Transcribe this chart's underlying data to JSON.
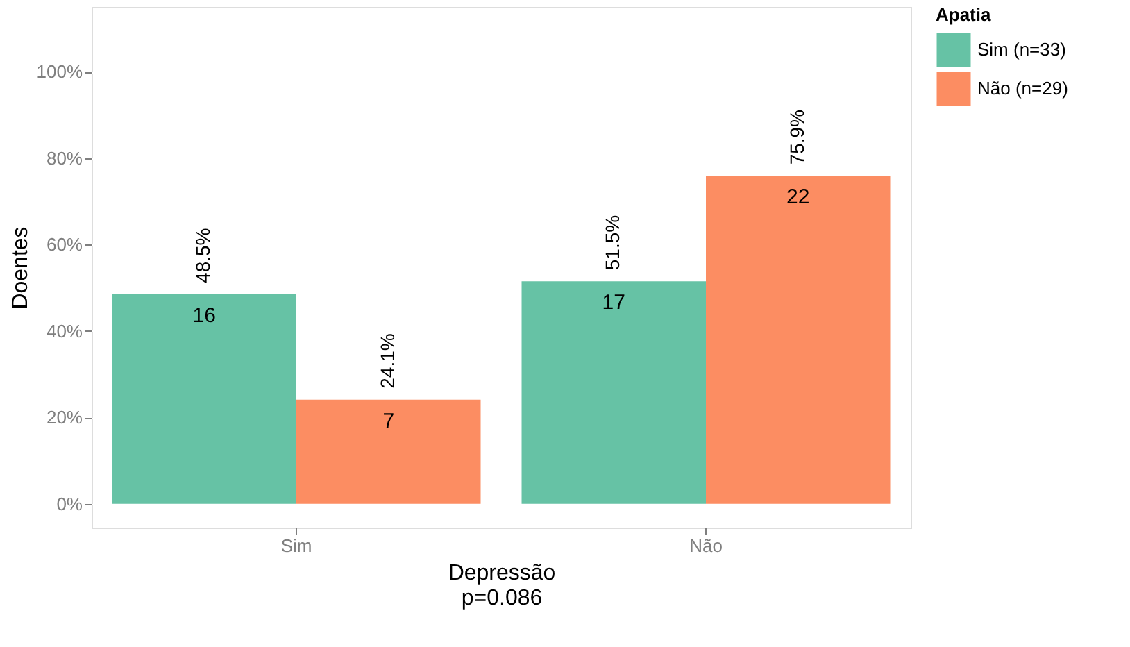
{
  "chart_data": {
    "type": "bar",
    "xlabel": "Depressão",
    "ylabel": "Doentes",
    "legend_title": "Apatia",
    "categories": [
      "Sim",
      "Não"
    ],
    "series": [
      {
        "name": "Sim (n=33)",
        "color": "#66c2a5",
        "values": [
          48.5,
          51.5
        ],
        "value_labels": [
          "48.5%",
          "51.5%"
        ]
      },
      {
        "name": "Não (n=29)",
        "color": "#fc8d62",
        "values": [
          24.1,
          75.9
        ],
        "value_labels": [
          "24.1%",
          "75.9%"
        ]
      }
    ],
    "ylim": [
      -5.5,
      115
    ],
    "yticks": [
      {
        "value": 0,
        "label": "0%"
      },
      {
        "value": 20,
        "label": "20%"
      },
      {
        "value": 40,
        "label": "40%"
      },
      {
        "value": 60,
        "label": "60%"
      },
      {
        "value": 80,
        "label": "80%"
      },
      {
        "value": 100,
        "label": "100%"
      }
    ],
    "grid": true,
    "legend": "right",
    "annotations": [
      "16",
      "7",
      "17",
      "22",
      "p=0.086"
    ]
  }
}
